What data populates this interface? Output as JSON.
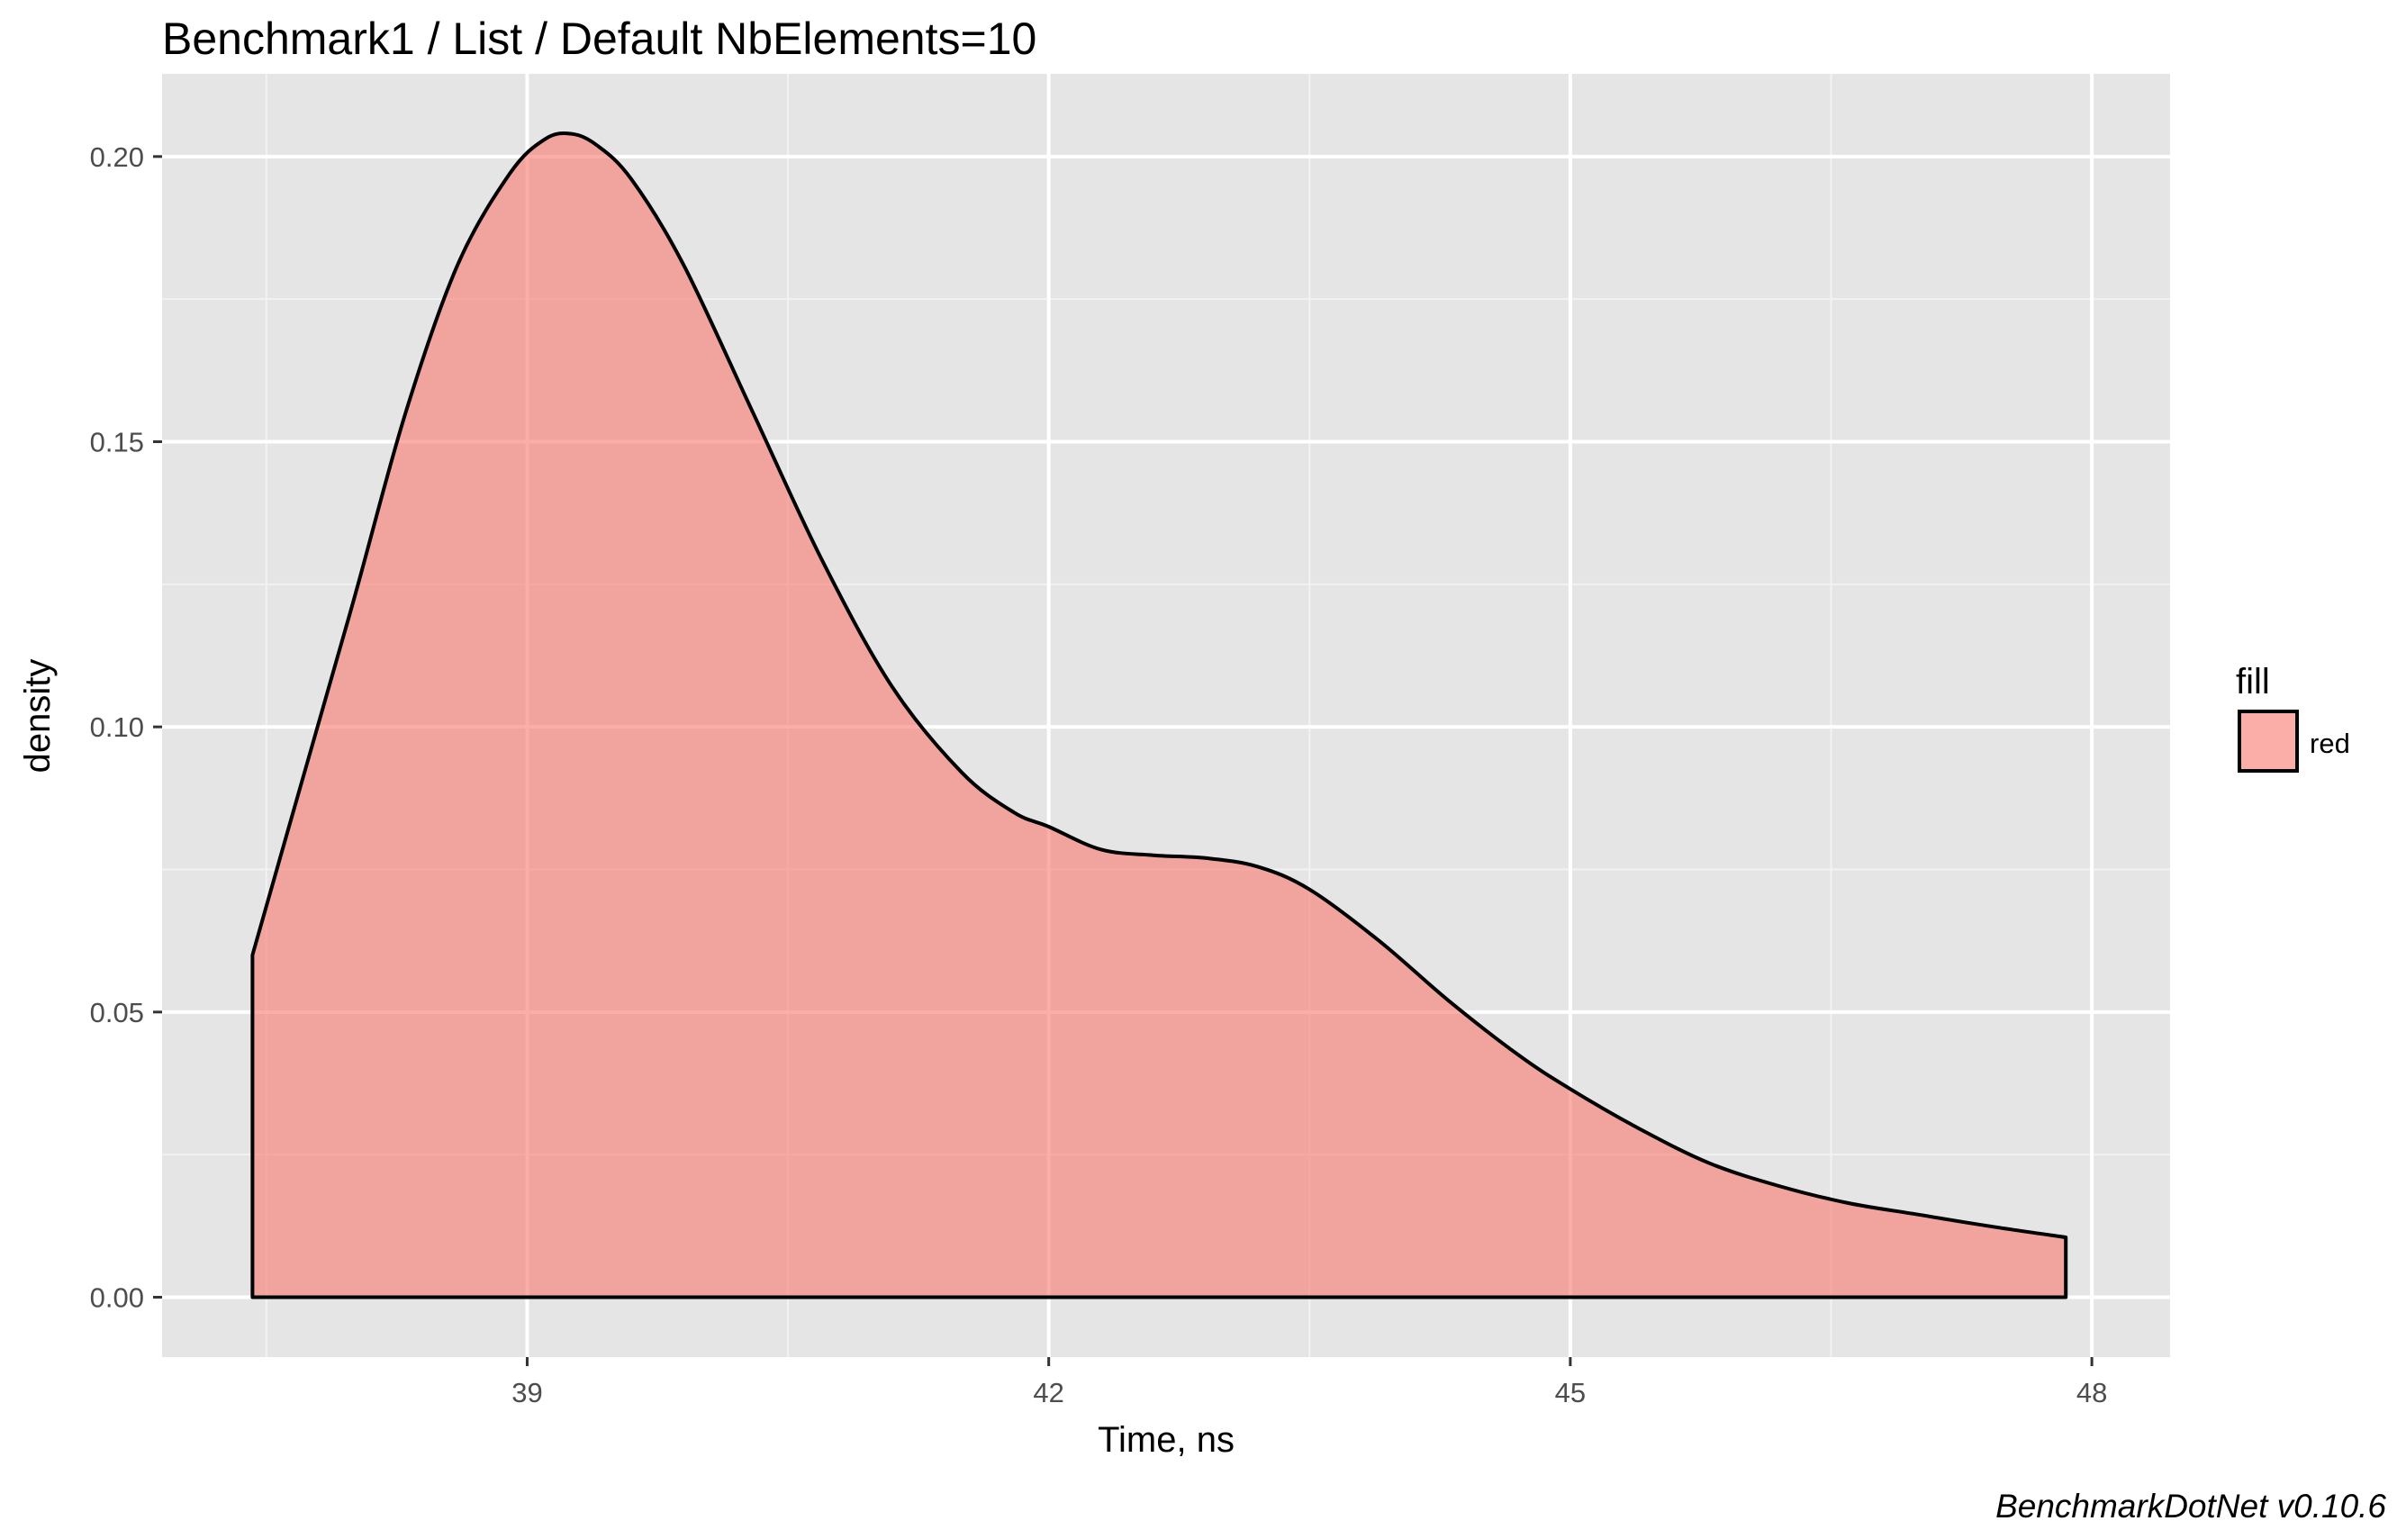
{
  "chart_data": {
    "type": "area",
    "title": "Benchmark1 / List / Default NbElements=10",
    "xlabel": "Time, ns",
    "ylabel": "density",
    "caption": "BenchmarkDotNet v0.10.6",
    "xlim": [
      36.9,
      48.45
    ],
    "ylim": [
      -0.0105,
      0.2145
    ],
    "x_ticks": [
      39,
      42,
      45,
      48
    ],
    "x_tick_labels": [
      "39",
      "42",
      "45",
      "48"
    ],
    "y_ticks": [
      0.0,
      0.05,
      0.1,
      0.15,
      0.2
    ],
    "y_tick_labels": [
      "0.00",
      "0.05",
      "0.10",
      "0.15",
      "0.20"
    ],
    "grid": true,
    "legend": {
      "title": "fill",
      "position": "right",
      "entries": [
        "red"
      ]
    },
    "series": [
      {
        "name": "red",
        "fill": "#f8766d",
        "fill_opacity": 0.6,
        "stroke": "#000000",
        "x": [
          37.42,
          37.7,
          38.0,
          38.3,
          38.6,
          38.9,
          39.1,
          39.25,
          39.4,
          39.6,
          39.9,
          40.3,
          40.7,
          41.1,
          41.5,
          41.8,
          42.0,
          42.3,
          42.6,
          42.9,
          43.2,
          43.5,
          43.9,
          44.3,
          44.7,
          45.0,
          45.4,
          45.8,
          46.2,
          46.6,
          47.0,
          47.4,
          47.85
        ],
        "y": [
          0.06,
          0.09,
          0.122,
          0.155,
          0.181,
          0.197,
          0.203,
          0.204,
          0.202,
          0.196,
          0.181,
          0.155,
          0.129,
          0.107,
          0.092,
          0.085,
          0.0825,
          0.0785,
          0.0775,
          0.077,
          0.0755,
          0.0715,
          0.0625,
          0.052,
          0.0425,
          0.0365,
          0.0295,
          0.0235,
          0.0195,
          0.0165,
          0.0145,
          0.0125,
          0.0105
        ]
      }
    ]
  }
}
